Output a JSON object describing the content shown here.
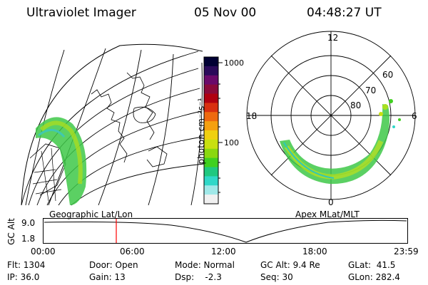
{
  "header": {
    "title": "Ultraviolet Imager",
    "date": "05 Nov 00",
    "time": "04:48:27 UT"
  },
  "left_map": {
    "label": "Geographic Lat/Lon"
  },
  "colorbar": {
    "unit": "photon cm⁻²s⁻¹",
    "ticks": [
      "1000",
      "100"
    ],
    "colors": [
      "#000033",
      "#2a0a5a",
      "#6a0a6a",
      "#8a0a3a",
      "#b00010",
      "#d83010",
      "#ee6a10",
      "#f5a010",
      "#f0d010",
      "#c8e010",
      "#8ad810",
      "#40d020",
      "#20c880",
      "#30d8c8",
      "#a0e8e8",
      "#f0f0f0"
    ]
  },
  "polar_plot": {
    "label": "Apex MLat/MLT",
    "mlt_labels": [
      "12",
      "18",
      "6",
      "0"
    ],
    "mlat_labels": [
      "60",
      "70",
      "80"
    ]
  },
  "altitude_plot": {
    "ylabel": "GC Alt",
    "yticks": [
      "9.0",
      "1.8"
    ],
    "xticks": [
      "00:00",
      "06:00",
      "12:00",
      "18:00",
      "23:59"
    ],
    "current_marker_hours": 4.8,
    "marker_color": "#ff0000"
  },
  "info": {
    "row1": {
      "flt": "Flt: 1304",
      "door": "Door: Open",
      "mode": "Mode: Normal",
      "gcalt": "GC Alt: 9.4 Re",
      "glat": "GLat:  41.5"
    },
    "row2": {
      "ip": "IP: 36.0",
      "gain": "Gain: 13",
      "dsp": "Dsp:    -2.3",
      "seq": "Seq: 30",
      "glon": "GLon: 282.4"
    }
  }
}
